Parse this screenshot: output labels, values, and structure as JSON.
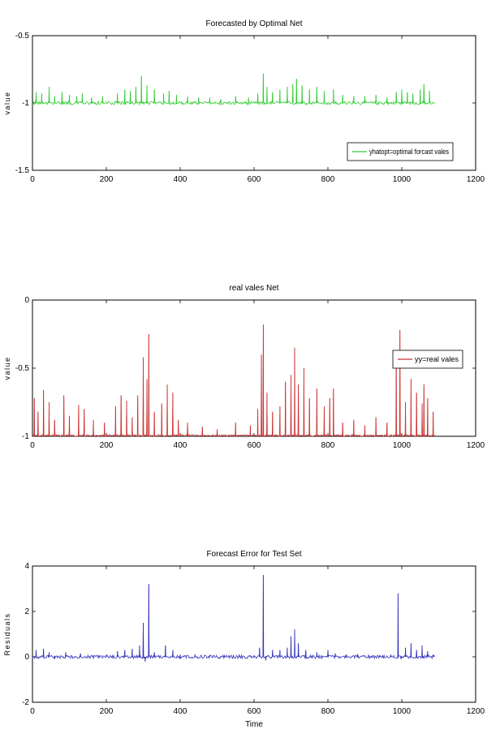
{
  "chart_data": [
    {
      "type": "line",
      "title": "Forecasted by Optimal Net",
      "xlabel": "",
      "ylabel": "value",
      "xlim": [
        0,
        1200
      ],
      "ylim": [
        -1.5,
        -0.5
      ],
      "xticks": [
        0,
        200,
        400,
        600,
        800,
        1000,
        1200
      ],
      "xtick_labels": [
        "0",
        "200",
        "400",
        "600",
        "800",
        "1000",
        "1200"
      ],
      "yticks": [
        -1.5,
        -1,
        -0.5
      ],
      "ytick_labels": [
        "-1.5",
        "-1",
        "-0.5"
      ],
      "legend": {
        "position": "bottom-right",
        "entries": [
          "yhatopt=optimal forcast vales"
        ]
      },
      "series": [
        {
          "name": "yhatopt=optimal forcast vales",
          "color": "#33cc33",
          "baseline": -1,
          "x_end": 1090,
          "spikes": [
            [
              10,
              -0.92
            ],
            [
              25,
              -0.93
            ],
            [
              45,
              -0.88
            ],
            [
              60,
              -0.95
            ],
            [
              80,
              -0.92
            ],
            [
              100,
              -0.94
            ],
            [
              120,
              -0.95
            ],
            [
              135,
              -0.93
            ],
            [
              160,
              -0.96
            ],
            [
              190,
              -0.95
            ],
            [
              230,
              -0.93
            ],
            [
              250,
              -0.9
            ],
            [
              265,
              -0.91
            ],
            [
              280,
              -0.88
            ],
            [
              295,
              -0.8
            ],
            [
              310,
              -0.87
            ],
            [
              330,
              -0.9
            ],
            [
              355,
              -0.93
            ],
            [
              370,
              -0.91
            ],
            [
              390,
              -0.94
            ],
            [
              420,
              -0.95
            ],
            [
              450,
              -0.96
            ],
            [
              480,
              -0.96
            ],
            [
              510,
              -0.97
            ],
            [
              550,
              -0.95
            ],
            [
              585,
              -0.96
            ],
            [
              610,
              -0.93
            ],
            [
              625,
              -0.78
            ],
            [
              635,
              -0.88
            ],
            [
              650,
              -0.92
            ],
            [
              670,
              -0.9
            ],
            [
              690,
              -0.88
            ],
            [
              705,
              -0.86
            ],
            [
              715,
              -0.82
            ],
            [
              730,
              -0.87
            ],
            [
              750,
              -0.9
            ],
            [
              770,
              -0.88
            ],
            [
              790,
              -0.91
            ],
            [
              815,
              -0.9
            ],
            [
              840,
              -0.94
            ],
            [
              870,
              -0.95
            ],
            [
              900,
              -0.95
            ],
            [
              930,
              -0.94
            ],
            [
              960,
              -0.96
            ],
            [
              985,
              -0.92
            ],
            [
              1000,
              -0.9
            ],
            [
              1015,
              -0.92
            ],
            [
              1030,
              -0.93
            ],
            [
              1050,
              -0.9
            ],
            [
              1060,
              -0.86
            ],
            [
              1075,
              -0.91
            ]
          ]
        }
      ]
    },
    {
      "type": "line",
      "title": "real vales Net",
      "xlabel": "",
      "ylabel": "value",
      "xlim": [
        0,
        1200
      ],
      "ylim": [
        -1,
        0
      ],
      "xticks": [
        0,
        200,
        400,
        600,
        800,
        1000,
        1200
      ],
      "xtick_labels": [
        "0",
        "200",
        "400",
        "600",
        "800",
        "1000",
        "1200"
      ],
      "yticks": [
        -1,
        -0.5,
        0
      ],
      "ytick_labels": [
        "-1",
        "-0.5",
        "0"
      ],
      "legend": {
        "position": "right",
        "entries": [
          "yy=real vales"
        ]
      },
      "series": [
        {
          "name": "yy=real vales",
          "color": "#cc3333",
          "baseline": -1,
          "x_end": 1090,
          "spikes": [
            [
              5,
              -0.72
            ],
            [
              15,
              -0.82
            ],
            [
              30,
              -0.66
            ],
            [
              45,
              -0.75
            ],
            [
              60,
              -0.88
            ],
            [
              85,
              -0.7
            ],
            [
              100,
              -0.85
            ],
            [
              125,
              -0.77
            ],
            [
              140,
              -0.8
            ],
            [
              165,
              -0.88
            ],
            [
              195,
              -0.9
            ],
            [
              225,
              -0.78
            ],
            [
              240,
              -0.7
            ],
            [
              255,
              -0.74
            ],
            [
              270,
              -0.86
            ],
            [
              285,
              -0.7
            ],
            [
              300,
              -0.42
            ],
            [
              310,
              -0.58
            ],
            [
              315,
              -0.25
            ],
            [
              330,
              -0.82
            ],
            [
              350,
              -0.76
            ],
            [
              365,
              -0.62
            ],
            [
              380,
              -0.68
            ],
            [
              395,
              -0.88
            ],
            [
              420,
              -0.9
            ],
            [
              460,
              -0.93
            ],
            [
              500,
              -0.95
            ],
            [
              550,
              -0.9
            ],
            [
              590,
              -0.92
            ],
            [
              610,
              -0.8
            ],
            [
              620,
              -0.4
            ],
            [
              625,
              -0.18
            ],
            [
              635,
              -0.68
            ],
            [
              650,
              -0.82
            ],
            [
              670,
              -0.78
            ],
            [
              685,
              -0.6
            ],
            [
              700,
              -0.55
            ],
            [
              710,
              -0.35
            ],
            [
              720,
              -0.62
            ],
            [
              735,
              -0.5
            ],
            [
              750,
              -0.72
            ],
            [
              770,
              -0.65
            ],
            [
              790,
              -0.78
            ],
            [
              805,
              -0.72
            ],
            [
              815,
              -0.65
            ],
            [
              840,
              -0.9
            ],
            [
              870,
              -0.88
            ],
            [
              900,
              -0.92
            ],
            [
              930,
              -0.86
            ],
            [
              960,
              -0.9
            ],
            [
              985,
              -0.38
            ],
            [
              995,
              -0.22
            ],
            [
              1010,
              -0.75
            ],
            [
              1025,
              -0.58
            ],
            [
              1040,
              -0.68
            ],
            [
              1055,
              -0.76
            ],
            [
              1060,
              -0.62
            ],
            [
              1070,
              -0.72
            ],
            [
              1085,
              -0.82
            ]
          ]
        }
      ]
    },
    {
      "type": "line",
      "title": "Forecast Error for Test Set",
      "xlabel": "Time",
      "ylabel": "Residuals",
      "xlim": [
        0,
        1200
      ],
      "ylim": [
        -2,
        4
      ],
      "xticks": [
        0,
        200,
        400,
        600,
        800,
        1000,
        1200
      ],
      "xtick_labels": [
        "0",
        "200",
        "400",
        "600",
        "800",
        "1000",
        "1200"
      ],
      "yticks": [
        -2,
        0,
        2,
        4
      ],
      "ytick_labels": [
        "-2",
        "0",
        "2",
        "4"
      ],
      "legend": null,
      "series": [
        {
          "name": "",
          "color": "#3333bb",
          "baseline": 0,
          "x_end": 1090,
          "spikes": [
            [
              10,
              0.3
            ],
            [
              30,
              0.35
            ],
            [
              45,
              0.2
            ],
            [
              60,
              -0.1
            ],
            [
              90,
              0.2
            ],
            [
              130,
              0.15
            ],
            [
              165,
              -0.08
            ],
            [
              200,
              0.1
            ],
            [
              230,
              0.25
            ],
            [
              250,
              0.3
            ],
            [
              270,
              0.35
            ],
            [
              290,
              0.5
            ],
            [
              300,
              1.5
            ],
            [
              305,
              -0.2
            ],
            [
              315,
              3.2
            ],
            [
              330,
              0.2
            ],
            [
              360,
              0.5
            ],
            [
              380,
              0.3
            ],
            [
              400,
              0.1
            ],
            [
              440,
              0.1
            ],
            [
              480,
              0.08
            ],
            [
              520,
              0.06
            ],
            [
              560,
              0.1
            ],
            [
              600,
              0.08
            ],
            [
              615,
              0.4
            ],
            [
              625,
              3.6
            ],
            [
              632,
              -0.15
            ],
            [
              650,
              0.3
            ],
            [
              670,
              0.3
            ],
            [
              690,
              0.4
            ],
            [
              700,
              0.9
            ],
            [
              710,
              1.2
            ],
            [
              720,
              0.6
            ],
            [
              740,
              0.3
            ],
            [
              770,
              0.2
            ],
            [
              800,
              0.3
            ],
            [
              820,
              0.15
            ],
            [
              850,
              0.1
            ],
            [
              880,
              0.12
            ],
            [
              910,
              0.1
            ],
            [
              940,
              0.08
            ],
            [
              970,
              0.1
            ],
            [
              990,
              2.8
            ],
            [
              998,
              -0.1
            ],
            [
              1010,
              0.4
            ],
            [
              1025,
              0.6
            ],
            [
              1040,
              0.3
            ],
            [
              1055,
              0.5
            ],
            [
              1070,
              0.25
            ],
            [
              1085,
              0.1
            ]
          ]
        }
      ]
    }
  ]
}
